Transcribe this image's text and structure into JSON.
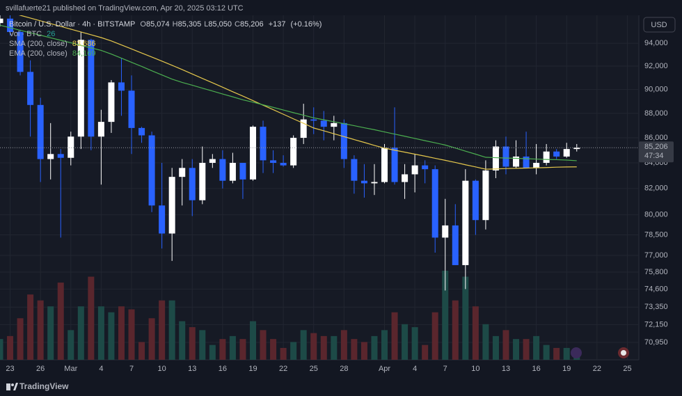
{
  "header": {
    "text": "svillafuerte21 published on TradingView.com, Apr 20, 2025 03:12 UTC"
  },
  "chart_data": {
    "type": "candlestick",
    "legend": {
      "symbol": "Bitcoin / U.S. Dollar · 4h · BITSTAMP",
      "ohlc": [
        {
          "prefix": "O",
          "value": 85074,
          "label": "85,074"
        },
        {
          "prefix": "H",
          "value": 85305,
          "label": "85,305"
        },
        {
          "prefix": "L",
          "value": 85050,
          "label": "85,050"
        },
        {
          "prefix": "C",
          "value": 85206,
          "label": "85,206"
        }
      ],
      "change": {
        "value": 137,
        "label": "+137"
      },
      "change_pct": {
        "value": 0.16,
        "label": "(+0.16%)"
      },
      "volume_name": "Vol · BTC",
      "volume_last": 26
    },
    "currency": "USD",
    "x": [
      "02-22",
      "02-23",
      "02-24",
      "02-25",
      "02-26",
      "02-27",
      "02-28",
      "03-01",
      "03-02",
      "03-03",
      "03-04",
      "03-05",
      "03-06",
      "03-07",
      "03-08",
      "03-09",
      "03-10",
      "03-11",
      "03-12",
      "03-13",
      "03-14",
      "03-15",
      "03-16",
      "03-17",
      "03-18",
      "03-19",
      "03-20",
      "03-21",
      "03-22",
      "03-23",
      "03-24",
      "03-25",
      "03-26",
      "03-27",
      "03-28",
      "03-29",
      "03-30",
      "03-31",
      "04-01",
      "04-02",
      "04-03",
      "04-04",
      "04-05",
      "04-06",
      "04-07",
      "04-08",
      "04-09",
      "04-10",
      "04-11",
      "04-12",
      "04-13",
      "04-14",
      "04-15",
      "04-16",
      "04-17",
      "04-18",
      "04-19",
      "04-20"
    ],
    "open": [
      95800,
      96200,
      95000,
      91500,
      88700,
      84300,
      84700,
      84400,
      86100,
      94300,
      86100,
      87300,
      90600,
      89900,
      86800,
      86200,
      80700,
      78600,
      82900,
      83600,
      81100,
      84000,
      84300,
      82600,
      84000,
      82700,
      86900,
      84200,
      84000,
      83800,
      86000,
      87500,
      87400,
      86900,
      87200,
      84300,
      82600,
      82400,
      82500,
      85200,
      82500,
      83100,
      83800,
      83500,
      78300,
      79200,
      76300,
      82600,
      79600,
      83400,
      85300,
      83700,
      84500,
      83600,
      84000,
      84900,
      84500,
      85100
    ],
    "high": [
      96700,
      96600,
      95200,
      92500,
      89300,
      87200,
      85100,
      86500,
      95000,
      94400,
      88300,
      90800,
      92700,
      91200,
      86900,
      86500,
      84000,
      83600,
      84300,
      84300,
      85300,
      84700,
      85000,
      84800,
      84000,
      87000,
      87400,
      85000,
      84600,
      86200,
      88800,
      88500,
      88200,
      87800,
      87500,
      84600,
      83900,
      83900,
      85500,
      88500,
      83900,
      84700,
      84200,
      83800,
      81200,
      80800,
      83500,
      82700,
      84200,
      85800,
      86100,
      85800,
      86500,
      85500,
      85500,
      85100,
      85600,
      85500
    ],
    "low": [
      95500,
      94700,
      91200,
      86100,
      82500,
      82700,
      78300,
      83800,
      85100,
      85000,
      82300,
      86400,
      87800,
      84700,
      85600,
      80200,
      77500,
      76600,
      80700,
      79900,
      80800,
      83600,
      82000,
      82400,
      81200,
      82600,
      83200,
      83200,
      83700,
      83600,
      85500,
      86300,
      85800,
      85800,
      83600,
      81600,
      81300,
      81500,
      82400,
      82300,
      81200,
      81700,
      82400,
      77200,
      74500,
      76300,
      74600,
      78500,
      78900,
      82800,
      83100,
      83600,
      83600,
      83100,
      83800,
      84300,
      84400,
      84900
    ],
    "close": [
      96200,
      95000,
      91500,
      88700,
      84300,
      84700,
      84400,
      86100,
      94300,
      86100,
      87300,
      90600,
      89900,
      86800,
      86200,
      80700,
      78600,
      82900,
      83600,
      81100,
      84000,
      84300,
      82600,
      84000,
      82700,
      86900,
      84200,
      84000,
      83800,
      86000,
      87500,
      87400,
      86900,
      87200,
      84300,
      82600,
      82400,
      82500,
      85200,
      82500,
      83100,
      83800,
      83500,
      78300,
      79200,
      76300,
      82600,
      79600,
      83400,
      85300,
      83700,
      84500,
      83600,
      84000,
      84900,
      84500,
      85100,
      85206
    ],
    "volume": [
      350,
      400,
      700,
      1100,
      1000,
      900,
      1300,
      500,
      900,
      1400,
      900,
      800,
      900,
      850,
      300,
      700,
      1000,
      1000,
      650,
      550,
      500,
      250,
      350,
      400,
      350,
      650,
      500,
      350,
      200,
      300,
      500,
      450,
      400,
      400,
      500,
      350,
      300,
      400,
      500,
      800,
      600,
      550,
      250,
      800,
      1500,
      1000,
      1400,
      900,
      600,
      400,
      500,
      350,
      350,
      400,
      250,
      200,
      200,
      100
    ],
    "up_color": "#ffffff",
    "down_color": "#2962ff",
    "volume_up_color": "#1d4a47",
    "volume_down_color": "#5a262d",
    "series": [
      {
        "name": "SMA (200, close)",
        "color": "#e6c84c",
        "values": [
          97000,
          96750,
          96500,
          96250,
          96000,
          95750,
          95500,
          95250,
          95000,
          94750,
          94500,
          94200,
          93850,
          93500,
          93140,
          92790,
          92430,
          92070,
          91700,
          91320,
          90940,
          90570,
          90190,
          89810,
          89440,
          89060,
          88680,
          88310,
          87930,
          87550,
          87180,
          86800,
          86570,
          86330,
          86100,
          85860,
          85630,
          85390,
          85170,
          85010,
          84850,
          84690,
          84530,
          84360,
          84200,
          84030,
          83850,
          83680,
          83500,
          83520,
          83550,
          83570,
          83590,
          83610,
          83630,
          83660,
          83680,
          83686
        ],
        "last": {
          "value": 83686,
          "label": "83,686"
        }
      },
      {
        "name": "EMA (200, close)",
        "color": "#4caf50",
        "values": [
          95600,
          95380,
          95150,
          94930,
          94710,
          94480,
          94260,
          94040,
          93810,
          93590,
          93370,
          93050,
          92690,
          92330,
          91970,
          91600,
          91240,
          90880,
          90600,
          90360,
          90110,
          89870,
          89620,
          89380,
          89130,
          88930,
          88710,
          88500,
          88280,
          88060,
          87850,
          87630,
          87470,
          87310,
          87150,
          86990,
          86820,
          86660,
          86480,
          86300,
          86130,
          85950,
          85770,
          85600,
          85420,
          85180,
          84930,
          84690,
          84440,
          84410,
          84380,
          84360,
          84330,
          84300,
          84270,
          84250,
          84220,
          84169
        ],
        "last": {
          "value": 84169,
          "label": "84,169"
        }
      }
    ],
    "ylim": [
      69800,
      96500
    ],
    "log_y": true,
    "yticks": [
      {
        "value": 94000,
        "label": "94,000"
      },
      {
        "value": 92000,
        "label": "92,000"
      },
      {
        "value": 90000,
        "label": "90,000"
      },
      {
        "value": 88000,
        "label": "88,000"
      },
      {
        "value": 86000,
        "label": "86,000"
      },
      {
        "value": 84000,
        "label": "84,000"
      },
      {
        "value": 82000,
        "label": "82,000"
      },
      {
        "value": 80000,
        "label": "80,000"
      },
      {
        "value": 78500,
        "label": "78,500"
      },
      {
        "value": 77000,
        "label": "77,000"
      },
      {
        "value": 75800,
        "label": "75,800"
      },
      {
        "value": 74600,
        "label": "74,600"
      },
      {
        "value": 73350,
        "label": "73,350"
      },
      {
        "value": 72150,
        "label": "72,150"
      },
      {
        "value": 70950,
        "label": "70,950"
      }
    ],
    "xlim": [
      "02-22",
      "04-26"
    ],
    "xticks": [
      {
        "value": "02-23",
        "label": "23"
      },
      {
        "value": "02-26",
        "label": "26"
      },
      {
        "value": "03-01",
        "label": "Mar"
      },
      {
        "value": "03-04",
        "label": "4"
      },
      {
        "value": "03-07",
        "label": "7"
      },
      {
        "value": "03-10",
        "label": "10"
      },
      {
        "value": "03-13",
        "label": "13"
      },
      {
        "value": "03-16",
        "label": "16"
      },
      {
        "value": "03-19",
        "label": "19"
      },
      {
        "value": "03-22",
        "label": "22"
      },
      {
        "value": "03-25",
        "label": "25"
      },
      {
        "value": "03-28",
        "label": "28"
      },
      {
        "value": "04-01",
        "label": "Apr"
      },
      {
        "value": "04-04",
        "label": "4"
      },
      {
        "value": "04-07",
        "label": "7"
      },
      {
        "value": "04-10",
        "label": "10"
      },
      {
        "value": "04-13",
        "label": "13"
      },
      {
        "value": "04-16",
        "label": "16"
      },
      {
        "value": "04-19",
        "label": "19"
      },
      {
        "value": "04-22",
        "label": "22"
      },
      {
        "value": "04-25",
        "label": "25"
      }
    ],
    "grid": true,
    "last_price": {
      "value": 85206,
      "label": "85,206"
    },
    "countdown": "47:34"
  },
  "footer": {
    "brand": "TradingView"
  }
}
